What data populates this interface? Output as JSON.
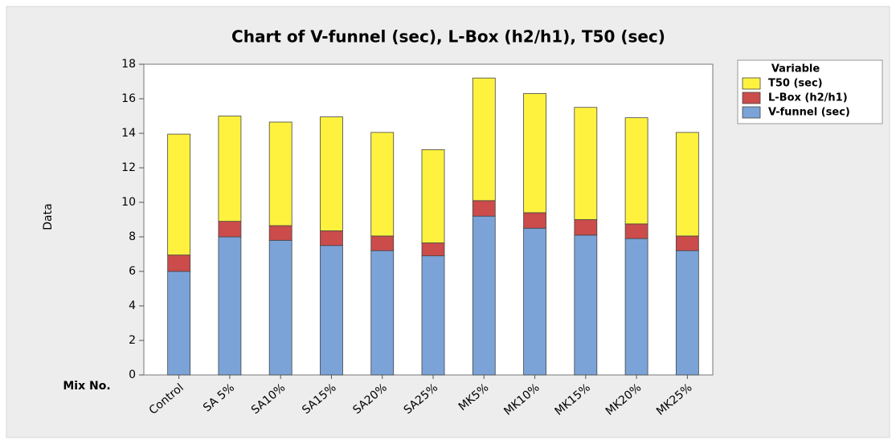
{
  "chart_data": {
    "type": "stacked_bar",
    "title": "Chart of V-funnel (sec), L-Box (h2/h1), T50 (sec)",
    "x_label": "Mix No.",
    "y_label": "Data",
    "legend_title": "Variable",
    "legend_position": "right",
    "categories": [
      "Control",
      "SA 5%",
      "SA10%",
      "SA15%",
      "SA20%",
      "SA25%",
      "MK5%",
      "MK10%",
      "MK15%",
      "MK20%",
      "MK25%"
    ],
    "series": [
      {
        "name": "V-funnel (sec)",
        "color": "#7ba3d8",
        "values": [
          6,
          8,
          7.8,
          7.5,
          7.2,
          6.9,
          9.2,
          8.5,
          8.1,
          7.9,
          7.2
        ]
      },
      {
        "name": "L-Box (h2/h1)",
        "color": "#cc4b4b",
        "values": [
          0.95,
          0.9,
          0.85,
          0.85,
          0.85,
          0.75,
          0.9,
          0.9,
          0.9,
          0.85,
          0.85
        ]
      },
      {
        "name": "T50 (sec)",
        "color": "#fff23f",
        "values": [
          7,
          6.1,
          6.0,
          6.6,
          6.0,
          5.4,
          7.1,
          6.9,
          6.5,
          6.15,
          6.0
        ]
      }
    ],
    "ylim": [
      0,
      18
    ],
    "yticks": [
      0,
      2,
      4,
      6,
      8,
      10,
      12,
      14,
      16,
      18
    ]
  }
}
